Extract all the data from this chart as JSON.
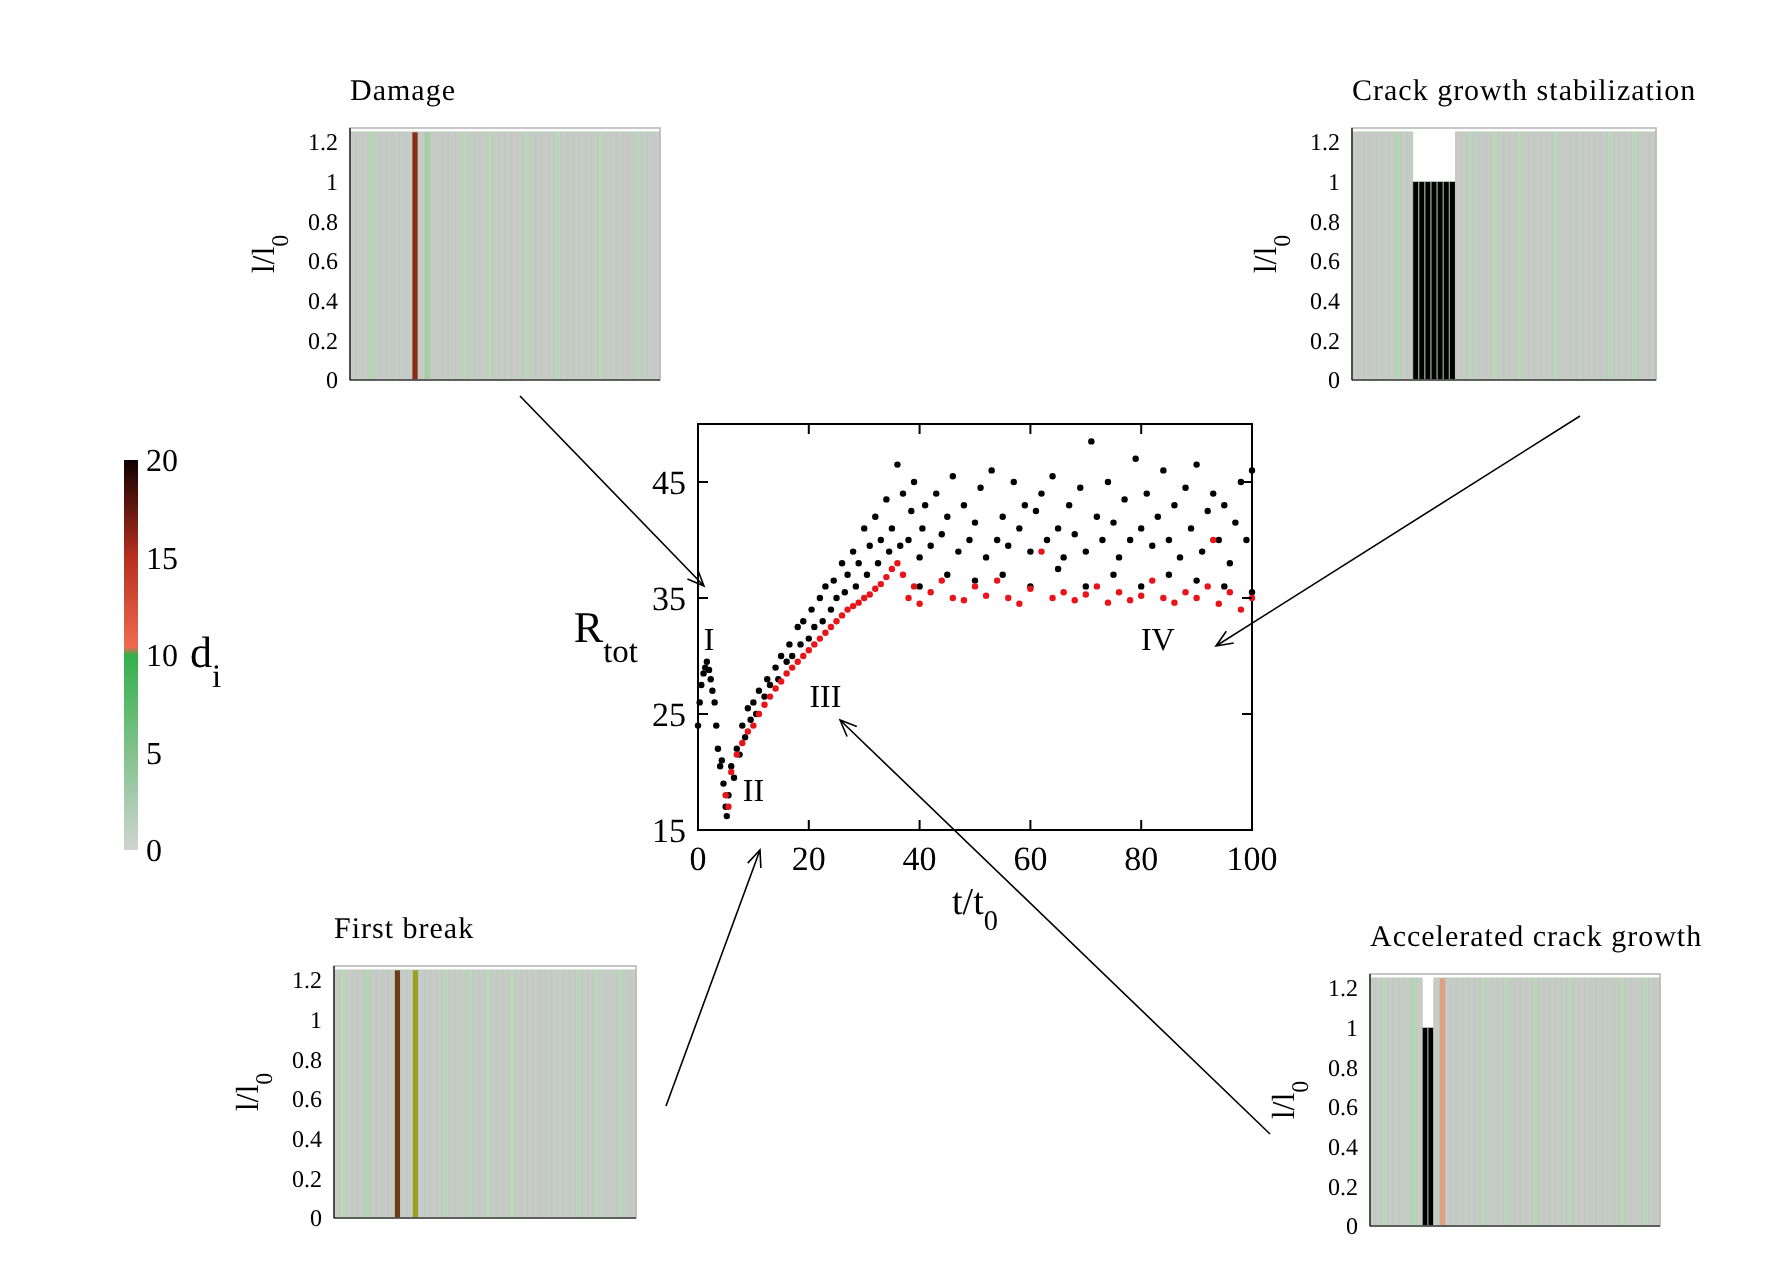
{
  "chart_data": [
    {
      "type": "scatter",
      "xlabel": "t/t$_{0}$",
      "ylabel": "R$_{tot}$",
      "xlim": [
        0,
        100
      ],
      "ylim": [
        15,
        50
      ],
      "xticks": [
        0,
        20,
        40,
        60,
        80,
        100
      ],
      "yticks": [
        15,
        25,
        35,
        45
      ],
      "marker": "circle",
      "grid": false,
      "series": [
        {
          "color": "#000000",
          "x": [
            0,
            0.3,
            0.6,
            1,
            1.3,
            1.6,
            2,
            2.3,
            2.6,
            3,
            3.3,
            3.6,
            4,
            4.3,
            4.6,
            5,
            5.2,
            5.5,
            6,
            6.5,
            7,
            7.5,
            8,
            8.5,
            9,
            9.5,
            10,
            10.5,
            11,
            12,
            12.5,
            13,
            14,
            14.5,
            15,
            16,
            16.5,
            17,
            18,
            18.5,
            19,
            20,
            20.5,
            21,
            22,
            22.5,
            23,
            24,
            24.5,
            25,
            26,
            26.5,
            27,
            28,
            28.5,
            29,
            30,
            30.5,
            31,
            32,
            32.5,
            33,
            34,
            34.5,
            35,
            36,
            36.5,
            37,
            38,
            38.5,
            39,
            40,
            40.5,
            41,
            42,
            43,
            44,
            45,
            46,
            47,
            48,
            49,
            50,
            51,
            52,
            53,
            54,
            55,
            56,
            57,
            58,
            59,
            60,
            61,
            62,
            63,
            64,
            65,
            66,
            67,
            68,
            69,
            70,
            71,
            72,
            73,
            74,
            75,
            76,
            77,
            78,
            79,
            80,
            81,
            82,
            83,
            84,
            85,
            86,
            87,
            88,
            89,
            90,
            91,
            92,
            93,
            94,
            95,
            96,
            97,
            98,
            99,
            100,
            40,
            45,
            50,
            55,
            60,
            65,
            70,
            75,
            80,
            85,
            90,
            95,
            100
          ],
          "values": [
            24,
            26,
            27.5,
            28.5,
            29,
            29.5,
            28.8,
            28,
            27,
            26,
            24,
            22,
            20.5,
            21,
            19,
            17,
            16.2,
            18,
            20.5,
            19.5,
            22,
            21.5,
            24,
            23,
            25.5,
            24.5,
            26,
            25,
            27,
            26.5,
            28,
            27.5,
            29,
            28,
            30,
            29.5,
            31,
            30,
            32.5,
            31,
            33,
            31.5,
            34,
            32.5,
            35,
            33,
            36,
            34,
            36.5,
            35,
            38,
            35.5,
            37,
            39,
            36,
            38,
            41,
            37,
            39.5,
            42,
            38,
            40,
            43.5,
            39,
            41,
            46.5,
            39.5,
            44,
            40,
            42.5,
            45,
            38.5,
            41,
            43,
            39.5,
            44,
            40.5,
            42,
            45.5,
            39,
            43,
            40,
            41.5,
            44.5,
            38.5,
            46,
            40,
            42,
            39.5,
            45,
            41,
            43,
            39,
            42.5,
            44,
            40,
            45.5,
            41,
            38.5,
            43,
            40.5,
            44.5,
            39,
            48.5,
            42,
            40,
            45,
            41.5,
            38.5,
            43.5,
            40,
            47,
            41,
            44,
            39.5,
            42,
            46,
            40,
            43,
            38.5,
            44.5,
            41,
            46.5,
            39,
            42.5,
            44,
            40,
            43,
            38,
            41.5,
            45,
            40,
            46,
            36,
            37,
            36.5,
            37,
            36,
            37.5,
            36,
            37,
            36,
            37,
            36.5,
            36,
            35.5
          ]
        },
        {
          "color": "#e8141a",
          "x": [
            5,
            5.5,
            6,
            7,
            8,
            9,
            10,
            11,
            12,
            13,
            14,
            15,
            16,
            17,
            18,
            19,
            20,
            21,
            22,
            23,
            24,
            25,
            26,
            27,
            28,
            29,
            30,
            31,
            32,
            33,
            34,
            35,
            36,
            37,
            38,
            39,
            40,
            42,
            44,
            46,
            48,
            50,
            52,
            54,
            56,
            58,
            60,
            62,
            64,
            66,
            68,
            70,
            72,
            74,
            76,
            78,
            80,
            82,
            84,
            86,
            88,
            90,
            92,
            93,
            94,
            96,
            98,
            100
          ],
          "values": [
            18,
            17,
            20,
            21.5,
            22.5,
            23.5,
            24,
            25,
            25.8,
            26.5,
            27.2,
            27.8,
            28.5,
            29,
            29.5,
            30,
            30.5,
            31,
            31.5,
            32,
            32.5,
            33,
            33.5,
            34,
            34.3,
            34.6,
            35,
            35.3,
            35.8,
            36.2,
            36.8,
            37.5,
            38,
            37,
            35,
            36,
            34.5,
            35.5,
            36.5,
            35,
            34.8,
            36,
            35.2,
            36.5,
            35,
            34.5,
            35.8,
            39,
            35,
            35.5,
            34.8,
            35.3,
            36,
            34.6,
            35.5,
            34.8,
            35.2,
            36.5,
            35,
            34.6,
            35.5,
            35,
            36,
            40,
            34.5,
            35.5,
            34,
            35
          ]
        }
      ],
      "annotations": [
        "I",
        "II",
        "III",
        "IV"
      ]
    },
    {
      "type": "bar",
      "title": "Damage",
      "ylabel": "l/l$_{0}$",
      "ylim": [
        0,
        1.27
      ],
      "yticks": [
        0,
        0.2,
        0.4,
        0.6,
        0.8,
        1,
        1.2
      ],
      "grid": false,
      "clabel": "d$_{i}$",
      "clim": [
        0,
        20
      ],
      "cticks": [
        0,
        5,
        10,
        15,
        20
      ],
      "categories": [
        null,
        null,
        null,
        null,
        null,
        null,
        null,
        null,
        null,
        null,
        null,
        null,
        null,
        null,
        null,
        null,
        null,
        null,
        null,
        null,
        null,
        null,
        null,
        null,
        null,
        null,
        null,
        null,
        null,
        null,
        null,
        null,
        null,
        null,
        null,
        null,
        null,
        null,
        null,
        null,
        null,
        null,
        null,
        null,
        null,
        null,
        null,
        null,
        null,
        null
      ],
      "values": [
        1.25,
        1.25,
        1.25,
        1.25,
        1.25,
        1.25,
        1.25,
        1.25,
        1.25,
        1.25,
        1.25,
        1.25,
        1.25,
        1.25,
        1.25,
        1.25,
        1.25,
        1.25,
        1.25,
        1.25,
        1.25,
        1.25,
        1.25,
        1.25,
        1.25,
        1.25,
        1.25,
        1.25,
        1.25,
        1.25,
        1.25,
        1.25,
        1.25,
        1.25,
        1.25,
        1.25,
        1.25,
        1.25,
        1.25,
        1.25,
        1.25,
        1.25,
        1.25,
        1.25,
        1.25,
        1.25,
        1.25,
        1.25,
        1.25,
        1.25
      ],
      "colors": [
        "#c8cac8",
        "#c8cac8",
        "#c8cac8",
        "#b4d6b4",
        "#c8cac8",
        "#c8cac8",
        "#c8cac8",
        "#c8cac8",
        "#c8cac8",
        "#c8cac8",
        "#8b2a1a",
        "#c8cac8",
        "#a6cfa6",
        "#c8cac8",
        "#c8cac8",
        "#c8cac8",
        "#c8cac8",
        "#c8cac8",
        "#bcd6bc",
        "#c8cac8",
        "#c8cac8",
        "#c8cac8",
        "#bcd6bc",
        "#c8cac8",
        "#c8cac8",
        "#c8cac8",
        "#c8cac8",
        "#c8cac8",
        "#bcd6bc",
        "#c8cac8",
        "#c8cac8",
        "#c8cac8",
        "#c8cac8",
        "#bcd6bc",
        "#c8cac8",
        "#c8cac8",
        "#c8cac8",
        "#c8cac8",
        "#c8cac8",
        "#c8cac8",
        "#bcd6bc",
        "#c8cac8",
        "#c8cac8",
        "#c8cac8",
        "#c8cac8",
        "#c8cac8",
        "#bcd6bc",
        "#c8cac8",
        "#c8cac8",
        "#c8cac8"
      ]
    },
    {
      "type": "bar",
      "title": "Crack growth stabilization",
      "ylabel": "l/l$_{0}$",
      "ylim": [
        0,
        1.27
      ],
      "yticks": [
        0,
        0.2,
        0.4,
        0.6,
        0.8,
        1,
        1.2
      ],
      "grid": false,
      "categories": [
        null,
        null,
        null,
        null,
        null,
        null,
        null,
        null,
        null,
        null,
        null,
        null,
        null,
        null,
        null,
        null,
        null,
        null,
        null,
        null,
        null,
        null,
        null,
        null,
        null,
        null,
        null,
        null,
        null,
        null,
        null,
        null,
        null,
        null,
        null,
        null,
        null,
        null,
        null,
        null,
        null,
        null,
        null,
        null,
        null,
        null,
        null,
        null,
        null,
        null
      ],
      "values": [
        1.25,
        1.25,
        1.25,
        1.25,
        1.25,
        1.25,
        1.25,
        1.25,
        1.25,
        1.25,
        1,
        1,
        1,
        1,
        1,
        1,
        1,
        1.25,
        1.25,
        1.25,
        1.25,
        1.25,
        1.25,
        1.25,
        1.25,
        1.25,
        1.25,
        1.25,
        1.25,
        1.25,
        1.25,
        1.25,
        1.25,
        1.25,
        1.25,
        1.25,
        1.25,
        1.25,
        1.25,
        1.25,
        1.25,
        1.25,
        1.25,
        1.25,
        1.25,
        1.25,
        1.25,
        1.25,
        1.25,
        1.25
      ],
      "colors": [
        "#c8cac8",
        "#c8cac8",
        "#c8cac8",
        "#c8cac8",
        "#c8cac8",
        "#c8cac8",
        "#c8cac8",
        "#b4d6b4",
        "#c8cac8",
        "#c8cac8",
        "#000000",
        "#000000",
        "#000000",
        "#000000",
        "#000000",
        "#000000",
        "#000000",
        "#c8cac8",
        "#c8cac8",
        "#bcd6bc",
        "#c8cac8",
        "#c8cac8",
        "#c8cac8",
        "#bcd6bc",
        "#c8cac8",
        "#c8cac8",
        "#c8cac8",
        "#bcd6bc",
        "#c8cac8",
        "#c8cac8",
        "#c8cac8",
        "#c8cac8",
        "#c8cac8",
        "#bcd6bc",
        "#c8cac8",
        "#c8cac8",
        "#c8cac8",
        "#c8cac8",
        "#c8cac8",
        "#c8cac8",
        "#c8cac8",
        "#c8cac8",
        "#bcd6bc",
        "#c8cac8",
        "#c8cac8",
        "#c8cac8",
        "#bcd6bc",
        "#c8cac8",
        "#c8cac8",
        "#c8cac8"
      ]
    },
    {
      "type": "bar",
      "title": "First break",
      "ylabel": "l/l$_{0}$",
      "ylim": [
        0,
        1.27
      ],
      "yticks": [
        0,
        0.2,
        0.4,
        0.6,
        0.8,
        1,
        1.2
      ],
      "grid": false,
      "categories": [
        null,
        null,
        null,
        null,
        null,
        null,
        null,
        null,
        null,
        null,
        null,
        null,
        null,
        null,
        null,
        null,
        null,
        null,
        null,
        null,
        null,
        null,
        null,
        null,
        null,
        null,
        null,
        null,
        null,
        null,
        null,
        null,
        null,
        null,
        null,
        null,
        null,
        null,
        null,
        null,
        null,
        null,
        null,
        null,
        null,
        null,
        null,
        null,
        null,
        null
      ],
      "values": [
        1.25,
        1.25,
        1.25,
        1.25,
        1.25,
        1.25,
        1.25,
        1.25,
        1.25,
        1.25,
        1.25,
        1.25,
        1.25,
        1.25,
        1.25,
        1.25,
        1.25,
        1.25,
        1.25,
        1.25,
        1.25,
        1.25,
        1.25,
        1.25,
        1.25,
        1.25,
        1.25,
        1.25,
        1.25,
        1.25,
        1.25,
        1.25,
        1.25,
        1.25,
        1.25,
        1.25,
        1.25,
        1.25,
        1.25,
        1.25,
        1.25,
        1.25,
        1.25,
        1.25,
        1.25,
        1.25,
        1.25,
        1.25,
        1.25,
        1.25
      ],
      "colors": [
        "#c8cac8",
        "#bcd6bc",
        "#c8cac8",
        "#c8cac8",
        "#c8cac8",
        "#b4d6b4",
        "#c8cac8",
        "#c8cac8",
        "#c8cac8",
        "#c8cac8",
        "#6b3a1a",
        "#c8cac8",
        "#c8cac8",
        "#9aa020",
        "#c8cac8",
        "#c8cac8",
        "#c8cac8",
        "#c8cac8",
        "#bcd6bc",
        "#c8cac8",
        "#c8cac8",
        "#c8cac8",
        "#bcd6bc",
        "#c8cac8",
        "#c8cac8",
        "#bcd6bc",
        "#c8cac8",
        "#c8cac8",
        "#c8cac8",
        "#bcd6bc",
        "#c8cac8",
        "#c8cac8",
        "#c8cac8",
        "#c8cac8",
        "#c8cac8",
        "#c8cac8",
        "#c8cac8",
        "#c8cac8",
        "#c8cac8",
        "#c8cac8",
        "#bcd6bc",
        "#c8cac8",
        "#c8cac8",
        "#bcd6bc",
        "#c8cac8",
        "#c8cac8",
        "#c8cac8",
        "#bcd6bc",
        "#c8cac8",
        "#c8cac8"
      ]
    },
    {
      "type": "bar",
      "title": "Accelerated crack growth",
      "ylabel": "l/l$_{0}$",
      "ylim": [
        0,
        1.27
      ],
      "yticks": [
        0,
        0.2,
        0.4,
        0.6,
        0.8,
        1,
        1.2
      ],
      "grid": false,
      "categories": [
        null,
        null,
        null,
        null,
        null,
        null,
        null,
        null,
        null,
        null,
        null,
        null,
        null,
        null,
        null,
        null,
        null,
        null,
        null,
        null,
        null,
        null,
        null,
        null,
        null,
        null,
        null,
        null,
        null,
        null,
        null,
        null,
        null,
        null,
        null,
        null,
        null,
        null,
        null,
        null,
        null,
        null,
        null,
        null,
        null,
        null,
        null,
        null,
        null,
        null
      ],
      "values": [
        1.25,
        1.25,
        1.25,
        1.25,
        1.25,
        1.25,
        1.25,
        1.25,
        1.25,
        1,
        1,
        1.25,
        1.25,
        1.25,
        1.25,
        1.25,
        1.25,
        1.25,
        1.25,
        1.25,
        1.25,
        1.25,
        1.25,
        1.25,
        1.25,
        1.25,
        1.25,
        1.25,
        1.25,
        1.25,
        1.25,
        1.25,
        1.25,
        1.25,
        1.25,
        1.25,
        1.25,
        1.25,
        1.25,
        1.25,
        1.25,
        1.25,
        1.25,
        1.25,
        1.25,
        1.25,
        1.25,
        1.25,
        1.25,
        1.25
      ],
      "colors": [
        "#c8cac8",
        "#c8cac8",
        "#bcd6bc",
        "#c8cac8",
        "#c8cac8",
        "#c8cac8",
        "#c8cac8",
        "#b4d6b4",
        "#c8cac8",
        "#000000",
        "#000000",
        "#c8cac8",
        "#e0a080",
        "#c8cac8",
        "#c8cac8",
        "#c8cac8",
        "#c8cac8",
        "#c8cac8",
        "#c8cac8",
        "#bcd6bc",
        "#c8cac8",
        "#c8cac8",
        "#c8cac8",
        "#bcd6bc",
        "#c8cac8",
        "#c8cac8",
        "#c8cac8",
        "#c8cac8",
        "#bcd6bc",
        "#c8cac8",
        "#c8cac8",
        "#c8cac8",
        "#c8cac8",
        "#c8cac8",
        "#bcd6bc",
        "#c8cac8",
        "#c8cac8",
        "#c8cac8",
        "#c8cac8",
        "#c8cac8",
        "#c8cac8",
        "#c8cac8",
        "#c8cac8",
        "#bcd6bc",
        "#c8cac8",
        "#c8cac8",
        "#c8cac8",
        "#bcd6bc",
        "#c8cac8",
        "#c8cac8"
      ]
    }
  ]
}
